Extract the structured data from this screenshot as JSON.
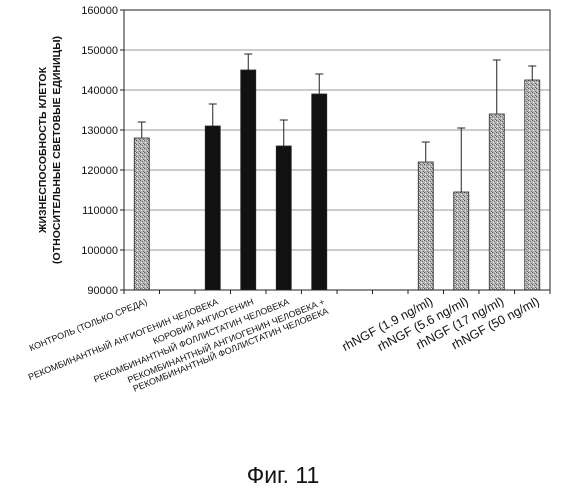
{
  "figure": {
    "caption": "Фиг. 11"
  },
  "chart_data": {
    "type": "bar",
    "ylabel_lines": [
      "ЖИЗНЕСПОСОБНОСТЬ КЛЕТОК",
      "(ОТНОСИТЕЛЬНЫЕ СВЕТОВЫЕ ЕДИНИЦЫ)"
    ],
    "ylim": [
      90000,
      160000
    ],
    "yticks": [
      90000,
      100000,
      110000,
      120000,
      130000,
      140000,
      150000,
      160000
    ],
    "ytick_labels": [
      "90000",
      "100000",
      "110000",
      "120000",
      "130000",
      "140000",
      "150000",
      "160000"
    ],
    "grid": "horizontal",
    "colors": {
      "dark": "#111111",
      "speckled": "#a8a8a8",
      "bar_stroke": "#222222"
    },
    "categories": [
      "КОНТРОЛЬ (ТОЛЬКО СРЕДА)",
      "",
      "РЕКОМБИНАНТНЫЙ АНГИОГЕНИН ЧЕЛОВЕКА",
      "КОРОВИЙ АНГИОГЕНИН",
      "РЕКОМБИНАНТНЫЙ ФОЛЛИСТАТИН ЧЕЛОВЕКА",
      "РЕКОМБИНАНТНЫЙ АНГИОГЕНИН ЧЕЛОВЕКА + РЕКОМБИНАНТНЫЙ ФОЛЛИСТАТИН ЧЕЛОВЕКА",
      "",
      "",
      "rhNGF (1.9 ng/ml)",
      "rhNGF (5.6 ng/ml)",
      "rhNGF (17 ng/ml)",
      "rhNGF (50 ng/ml)"
    ],
    "category_label_lines": [
      [
        "КОНТРОЛЬ (ТОЛЬКО СРЕДА)"
      ],
      [],
      [
        "РЕКОМБИНАНТНЫЙ АНГИОГЕНИН ЧЕЛОВЕКА"
      ],
      [
        "КОРОВИЙ АНГИОГЕНИН"
      ],
      [
        "РЕКОМБИНАНТНЫЙ ФОЛЛИСТАТИН ЧЕЛОВЕКА"
      ],
      [
        "РЕКОМБИНАНТНЫЙ АНГИОГЕНИН ЧЕЛОВЕКА +",
        "РЕКОМБИНАНТНЫЙ ФОЛЛИСТАТИН ЧЕЛОВЕКА"
      ],
      [],
      [],
      [
        "rhNGF (1.9 ng/ml)"
      ],
      [
        "rhNGF (5.6 ng/ml)"
      ],
      [
        "rhNGF (17 ng/ml)"
      ],
      [
        "rhNGF (50 ng/ml)"
      ]
    ],
    "values": [
      128000,
      null,
      131000,
      145000,
      126000,
      139000,
      null,
      null,
      122000,
      114500,
      134000,
      142500
    ],
    "errors": [
      4000,
      null,
      5500,
      4000,
      6500,
      5000,
      null,
      null,
      5000,
      16000,
      13500,
      3500
    ],
    "bar_styles": [
      "speckled",
      null,
      "dark",
      "dark",
      "dark",
      "dark",
      null,
      null,
      "speckled",
      "speckled",
      "speckled",
      "speckled"
    ]
  }
}
